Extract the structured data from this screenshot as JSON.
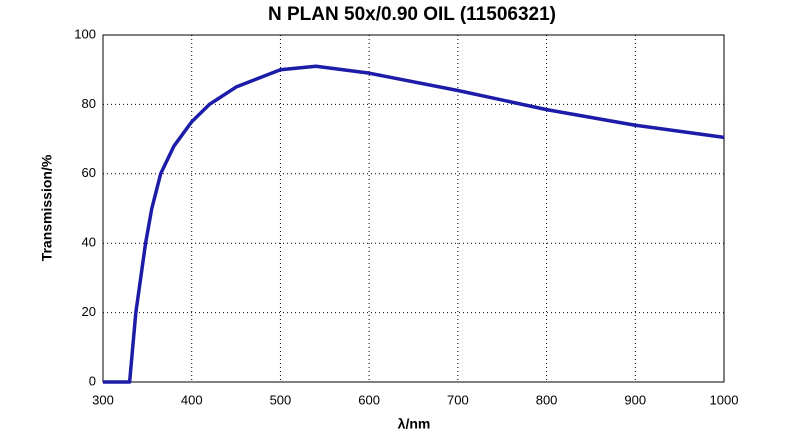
{
  "chart_data": {
    "type": "line",
    "title": "N PLAN 50x/0.90 OIL (11506321)",
    "x_label": "λ/nm",
    "y_label": "Transmission/%",
    "xlim": [
      300,
      1000
    ],
    "ylim": [
      0,
      100
    ],
    "xticks": [
      300,
      400,
      500,
      600,
      700,
      800,
      900,
      1000
    ],
    "yticks": [
      0,
      20,
      40,
      60,
      80,
      100
    ],
    "grid": true,
    "series": [
      {
        "name": "Transmission",
        "color": "#1c1ca8",
        "x": [
          300,
          320,
          330,
          337,
          348,
          355,
          365,
          380,
          400,
          420,
          450,
          500,
          540,
          600,
          700,
          800,
          900,
          1000
        ],
        "values": [
          0,
          0,
          0,
          20,
          40,
          50,
          60,
          68,
          75,
          80,
          85,
          90,
          91,
          89,
          84,
          78.5,
          74,
          70.5
        ]
      }
    ]
  }
}
